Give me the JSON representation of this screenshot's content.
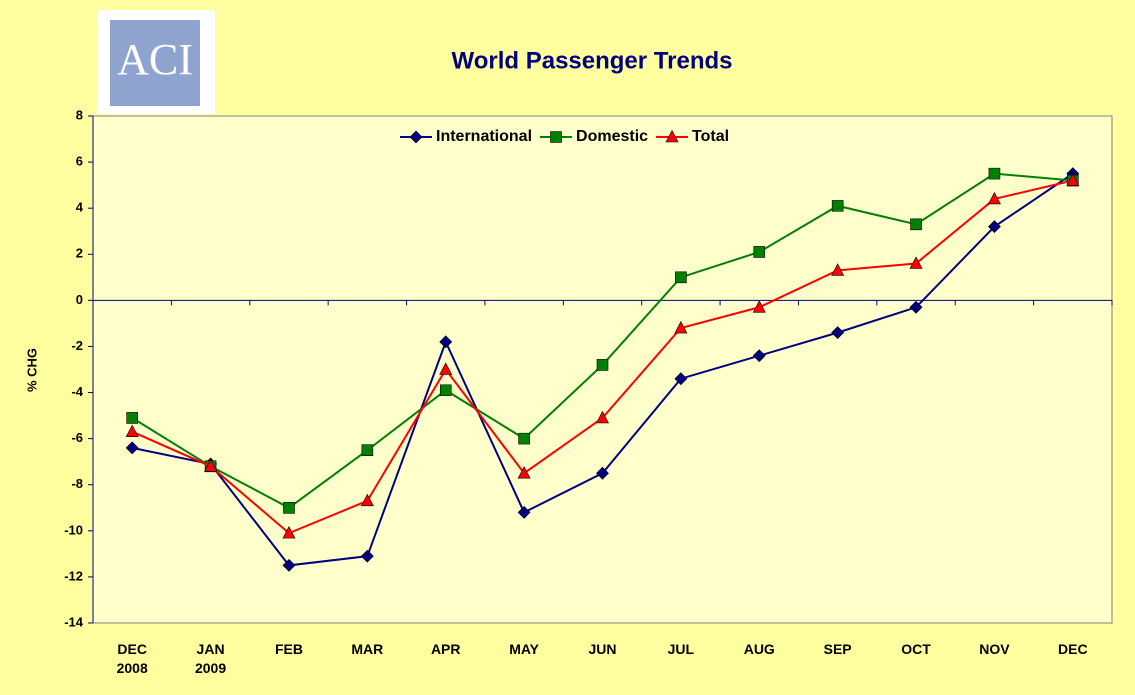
{
  "logo_text": "ACI",
  "chart_data": {
    "type": "line",
    "title": "World Passenger Trends",
    "ylabel": "% CHG",
    "categories": [
      "DEC 2008",
      "JAN 2009",
      "FEB",
      "MAR",
      "APR",
      "MAY",
      "JUN",
      "JUL",
      "AUG",
      "SEP",
      "OCT",
      "NOV",
      "DEC"
    ],
    "series": [
      {
        "name": "International",
        "color": "#000080",
        "marker": "diamond",
        "values": [
          -6.4,
          -7.1,
          -11.5,
          -11.1,
          -1.8,
          -9.2,
          -7.5,
          -3.4,
          -2.4,
          -1.4,
          -0.3,
          3.2,
          5.5
        ]
      },
      {
        "name": "Domestic",
        "color": "#008000",
        "marker": "square",
        "values": [
          -5.1,
          -7.2,
          -9.0,
          -6.5,
          -3.9,
          -6.0,
          -2.8,
          1.0,
          2.1,
          4.1,
          3.3,
          5.5,
          5.2
        ]
      },
      {
        "name": "Total",
        "color": "#ff0000",
        "marker": "triangle",
        "values": [
          -5.7,
          -7.2,
          -10.1,
          -8.7,
          -3.0,
          -7.5,
          -5.1,
          -1.2,
          -0.3,
          1.3,
          1.6,
          4.4,
          5.2
        ]
      }
    ],
    "ylim": [
      -14,
      8
    ],
    "yticks": [
      -14,
      -12,
      -10,
      -8,
      -6,
      -4,
      -2,
      0,
      2,
      4,
      6,
      8
    ],
    "grid": false,
    "legend": "top"
  }
}
